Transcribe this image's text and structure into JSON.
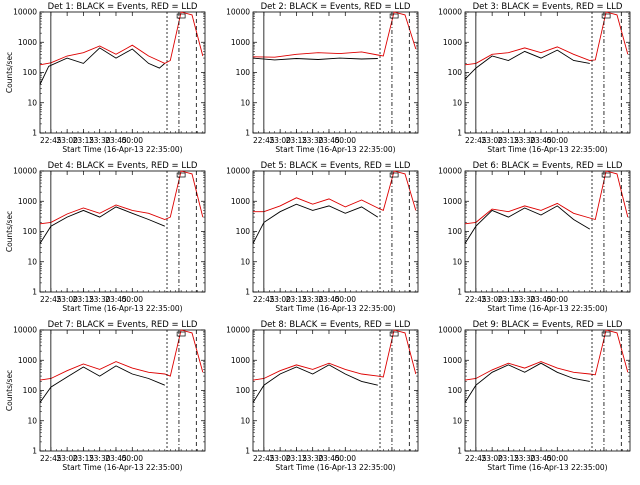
{
  "chart_data": [
    {
      "type": "line",
      "title": "Det 1:  BLACK = Events, RED = LLD",
      "xlabel": "Start Time (16-Apr-13 22:35:00)",
      "ylabel": "Counts/sec",
      "yscale": "log",
      "ylim": [
        1,
        10000
      ],
      "x_tick_labels": [
        "22:45",
        "23:00",
        "23:15",
        "23:30",
        "23:45",
        "00:00"
      ],
      "y_tick_labels": [
        "1",
        "10",
        "100",
        "1000",
        "10000"
      ],
      "series": [
        {
          "color": "#000000",
          "x_min": [
            0,
            8,
            25,
            40,
            55,
            70,
            85,
            100,
            110,
            115
          ],
          "values": [
            40,
            160,
            300,
            200,
            650,
            300,
            600,
            200,
            140,
            200
          ]
        },
        {
          "color": "#dd0000",
          "x_min": [
            0,
            10,
            25,
            40,
            55,
            70,
            85,
            100,
            115,
            120,
            130,
            140,
            150
          ],
          "values": [
            180,
            210,
            350,
            450,
            750,
            400,
            800,
            350,
            200,
            250,
            10000,
            8000,
            350
          ]
        }
      ],
      "vlines_min": [
        10,
        117,
        128,
        144
      ]
    },
    {
      "type": "line",
      "title": "Det 2:  BLACK = Events, RED = LLD",
      "xlabel": "Start Time (16-Apr-13 22:35:00)",
      "ylabel": "",
      "yscale": "log",
      "ylim": [
        1,
        10000
      ],
      "x_tick_labels": [
        "22:45",
        "23:00",
        "23:15",
        "23:30",
        "23:45",
        "00:00"
      ],
      "y_tick_labels": [
        "1",
        "10",
        "100",
        "1000",
        "10000"
      ],
      "series": [
        {
          "color": "#000000",
          "x_min": [
            0,
            20,
            40,
            60,
            80,
            100,
            115
          ],
          "values": [
            300,
            260,
            290,
            270,
            300,
            280,
            290
          ]
        },
        {
          "color": "#dd0000",
          "x_min": [
            0,
            20,
            40,
            60,
            80,
            100,
            115,
            120,
            130,
            140,
            150
          ],
          "values": [
            330,
            320,
            400,
            450,
            420,
            480,
            380,
            350,
            10000,
            8000,
            600
          ]
        }
      ],
      "vlines_min": [
        10,
        117,
        128,
        144
      ]
    },
    {
      "type": "line",
      "title": "Det 3:  BLACK = Events, RED = LLD",
      "xlabel": "Start Time (16-Apr-13 22:35:00)",
      "ylabel": "",
      "yscale": "log",
      "ylim": [
        1,
        10000
      ],
      "x_tick_labels": [
        "22:45",
        "23:00",
        "23:15",
        "23:30",
        "23:45",
        "00:00"
      ],
      "y_tick_labels": [
        "1",
        "10",
        "100",
        "1000",
        "10000"
      ],
      "series": [
        {
          "color": "#000000",
          "x_min": [
            0,
            10,
            25,
            40,
            55,
            70,
            85,
            100,
            115
          ],
          "values": [
            60,
            140,
            350,
            250,
            500,
            300,
            550,
            250,
            200
          ]
        },
        {
          "color": "#dd0000",
          "x_min": [
            0,
            10,
            25,
            40,
            55,
            70,
            85,
            100,
            115,
            120,
            130,
            140,
            150
          ],
          "values": [
            180,
            200,
            400,
            450,
            650,
            450,
            700,
            400,
            250,
            260,
            10000,
            8000,
            400
          ]
        }
      ],
      "vlines_min": [
        10,
        117,
        128,
        144
      ]
    },
    {
      "type": "line",
      "title": "Det 4:  BLACK = Events, RED = LLD",
      "xlabel": "Start Time (16-Apr-13 22:35:00)",
      "ylabel": "Counts/sec",
      "yscale": "log",
      "ylim": [
        1,
        10000
      ],
      "x_tick_labels": [
        "22:45",
        "23:00",
        "23:15",
        "23:30",
        "23:45",
        "00:00"
      ],
      "y_tick_labels": [
        "1",
        "10",
        "100",
        "1000",
        "10000"
      ],
      "series": [
        {
          "color": "#000000",
          "x_min": [
            0,
            10,
            25,
            40,
            55,
            70,
            85,
            100,
            115
          ],
          "values": [
            40,
            150,
            300,
            500,
            300,
            650,
            400,
            250,
            150
          ]
        },
        {
          "color": "#dd0000",
          "x_min": [
            0,
            10,
            25,
            40,
            55,
            70,
            85,
            100,
            115,
            120,
            130,
            140,
            150
          ],
          "values": [
            180,
            200,
            380,
            600,
            400,
            750,
            500,
            400,
            250,
            300,
            10000,
            8000,
            300
          ]
        }
      ],
      "vlines_min": [
        10,
        117,
        128,
        144
      ]
    },
    {
      "type": "line",
      "title": "Det 5:  BLACK = Events, RED = LLD",
      "xlabel": "Start Time (16-Apr-13 22:35:00)",
      "ylabel": "",
      "yscale": "log",
      "ylim": [
        1,
        10000
      ],
      "x_tick_labels": [
        "22:45",
        "23:00",
        "23:15",
        "23:30",
        "23:45",
        "00:00"
      ],
      "y_tick_labels": [
        "1",
        "10",
        "100",
        "1000",
        "10000"
      ],
      "series": [
        {
          "color": "#000000",
          "x_min": [
            0,
            10,
            25,
            40,
            55,
            70,
            85,
            100,
            115
          ],
          "values": [
            40,
            200,
            450,
            800,
            500,
            700,
            400,
            650,
            300
          ]
        },
        {
          "color": "#dd0000",
          "x_min": [
            0,
            10,
            25,
            40,
            55,
            70,
            85,
            100,
            115,
            120,
            130,
            140,
            150
          ],
          "values": [
            450,
            450,
            700,
            1300,
            800,
            1200,
            650,
            1100,
            600,
            500,
            10000,
            8000,
            500
          ]
        }
      ],
      "vlines_min": [
        10,
        117,
        128,
        144
      ]
    },
    {
      "type": "line",
      "title": "Det 6:  BLACK = Events, RED = LLD",
      "xlabel": "Start Time (16-Apr-13 22:35:00)",
      "ylabel": "",
      "yscale": "log",
      "ylim": [
        1,
        10000
      ],
      "x_tick_labels": [
        "22:45",
        "23:00",
        "23:15",
        "23:30",
        "23:45",
        "00:00"
      ],
      "y_tick_labels": [
        "1",
        "10",
        "100",
        "1000",
        "10000"
      ],
      "series": [
        {
          "color": "#000000",
          "x_min": [
            0,
            10,
            25,
            40,
            55,
            70,
            85,
            100,
            115
          ],
          "values": [
            40,
            150,
            500,
            300,
            600,
            350,
            700,
            250,
            120
          ]
        },
        {
          "color": "#dd0000",
          "x_min": [
            0,
            10,
            25,
            40,
            55,
            70,
            85,
            100,
            115,
            120,
            130,
            140,
            150
          ],
          "values": [
            180,
            200,
            550,
            450,
            700,
            500,
            850,
            400,
            280,
            250,
            10000,
            8000,
            300
          ]
        }
      ],
      "vlines_min": [
        10,
        117,
        128,
        144
      ]
    },
    {
      "type": "line",
      "title": "Det 7:  BLACK = Events, RED = LLD",
      "xlabel": "Start Time (16-Apr-13 22:35:00)",
      "ylabel": "Counts/sec",
      "yscale": "log",
      "ylim": [
        1,
        10000
      ],
      "x_tick_labels": [
        "22:45",
        "23:00",
        "23:15",
        "23:30",
        "23:45",
        "00:00"
      ],
      "y_tick_labels": [
        "1",
        "10",
        "100",
        "1000",
        "10000"
      ],
      "series": [
        {
          "color": "#000000",
          "x_min": [
            0,
            10,
            25,
            40,
            55,
            70,
            85,
            100,
            115
          ],
          "values": [
            40,
            130,
            280,
            600,
            300,
            650,
            350,
            250,
            150
          ]
        },
        {
          "color": "#dd0000",
          "x_min": [
            0,
            10,
            25,
            40,
            55,
            70,
            85,
            100,
            115,
            120,
            130,
            140,
            150
          ],
          "values": [
            220,
            250,
            450,
            750,
            500,
            900,
            550,
            400,
            350,
            300,
            10000,
            8000,
            400
          ]
        }
      ],
      "vlines_min": [
        10,
        117,
        128,
        144
      ]
    },
    {
      "type": "line",
      "title": "Det 8:  BLACK = Events, RED = LLD",
      "xlabel": "Start Time (16-Apr-13 22:35:00)",
      "ylabel": "",
      "yscale": "log",
      "ylim": [
        1,
        10000
      ],
      "x_tick_labels": [
        "22:45",
        "23:00",
        "23:15",
        "23:30",
        "23:45",
        "00:00"
      ],
      "y_tick_labels": [
        "1",
        "10",
        "100",
        "1000",
        "10000"
      ],
      "series": [
        {
          "color": "#000000",
          "x_min": [
            0,
            10,
            25,
            40,
            55,
            70,
            85,
            100,
            115
          ],
          "values": [
            40,
            150,
            350,
            600,
            350,
            700,
            350,
            200,
            150
          ]
        },
        {
          "color": "#dd0000",
          "x_min": [
            0,
            10,
            25,
            40,
            55,
            70,
            85,
            100,
            115,
            120,
            130,
            140,
            150
          ],
          "values": [
            220,
            250,
            450,
            700,
            500,
            800,
            500,
            350,
            300,
            280,
            10000,
            8000,
            350
          ]
        }
      ],
      "vlines_min": [
        10,
        117,
        128,
        144
      ]
    },
    {
      "type": "line",
      "title": "Det 9:  BLACK = Events, RED = LLD",
      "xlabel": "Start Time (16-Apr-13 22:35:00)",
      "ylabel": "",
      "yscale": "log",
      "ylim": [
        1,
        10000
      ],
      "x_tick_labels": [
        "22:45",
        "23:00",
        "23:15",
        "23:30",
        "23:45",
        "00:00"
      ],
      "y_tick_labels": [
        "1",
        "10",
        "100",
        "1000",
        "10000"
      ],
      "series": [
        {
          "color": "#000000",
          "x_min": [
            0,
            10,
            25,
            40,
            55,
            70,
            85,
            100,
            115
          ],
          "values": [
            40,
            150,
            400,
            700,
            400,
            800,
            400,
            250,
            200
          ]
        },
        {
          "color": "#dd0000",
          "x_min": [
            0,
            10,
            25,
            40,
            55,
            70,
            85,
            100,
            115,
            120,
            130,
            140,
            150
          ],
          "values": [
            220,
            250,
            480,
            800,
            550,
            900,
            550,
            400,
            350,
            330,
            10000,
            8000,
            400
          ]
        }
      ],
      "vlines_min": [
        10,
        117,
        128,
        144
      ]
    }
  ]
}
